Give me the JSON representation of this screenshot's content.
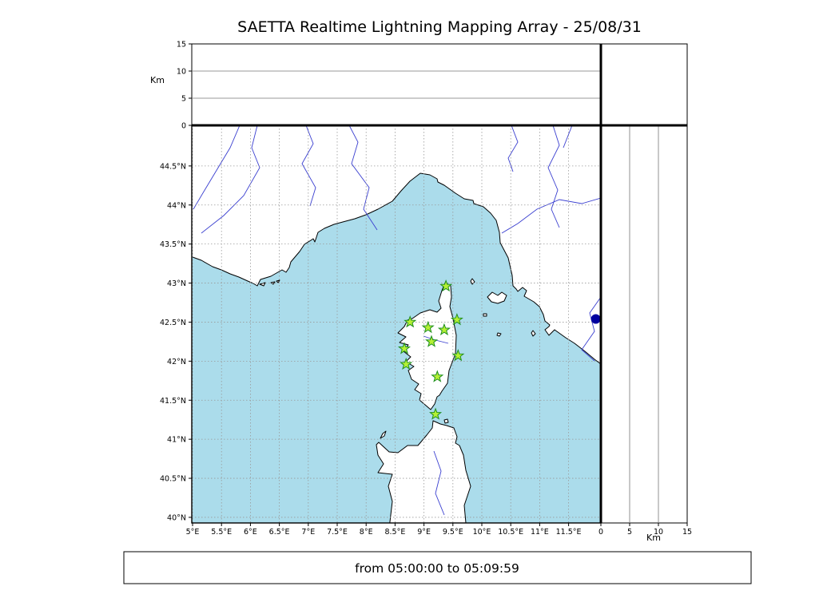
{
  "title": "SAETTA Realtime Lightning Mapping Array - 25/08/31",
  "status_bar": {
    "text": "from 05:00:00 to 05:09:59"
  },
  "chart_data": {
    "type": "scatter",
    "title": "SAETTA Realtime Lightning Mapping Array - 25/08/31",
    "time_range": "from 05:00:00 to 05:09:59",
    "map": {
      "lon_range": [
        4.986,
        12.058
      ],
      "lat_range": [
        39.928,
        45.02
      ],
      "lon_ticks": [
        {
          "value": 5.0,
          "label": "5°E"
        },
        {
          "value": 5.5,
          "label": "5.5°E"
        },
        {
          "value": 6.0,
          "label": "6°E"
        },
        {
          "value": 6.5,
          "label": "6.5°E"
        },
        {
          "value": 7.0,
          "label": "7°E"
        },
        {
          "value": 7.5,
          "label": "7.5°E"
        },
        {
          "value": 8.0,
          "label": "8°E"
        },
        {
          "value": 8.5,
          "label": "8.5°E"
        },
        {
          "value": 9.0,
          "label": "9°E"
        },
        {
          "value": 9.5,
          "label": "9.5°E"
        },
        {
          "value": 10.0,
          "label": "10°E"
        },
        {
          "value": 10.5,
          "label": "10.5°E"
        },
        {
          "value": 11.0,
          "label": "11°E"
        },
        {
          "value": 11.5,
          "label": "11.5°E"
        }
      ],
      "lat_ticks": [
        {
          "value": 40.0,
          "label": "40°N"
        },
        {
          "value": 40.5,
          "label": "40.5°N"
        },
        {
          "value": 41.0,
          "label": "41°N"
        },
        {
          "value": 41.5,
          "label": "41.5°N"
        },
        {
          "value": 42.0,
          "label": "42°N"
        },
        {
          "value": 42.5,
          "label": "42.5°N"
        },
        {
          "value": 43.0,
          "label": "43°N"
        },
        {
          "value": 43.5,
          "label": "43.5°N"
        },
        {
          "value": 44.0,
          "label": "44°N"
        },
        {
          "value": 44.5,
          "label": "44.5°N"
        }
      ],
      "sea_color": "#abdceb",
      "land_color": "#ffffff",
      "coast_color": "#000000",
      "river_color": "#3a3fd0",
      "grid_color": "#999999"
    },
    "altitude_axis": {
      "label": "Km",
      "range": [
        0,
        15
      ],
      "ticks": [
        {
          "value": 0,
          "label": "0"
        },
        {
          "value": 5,
          "label": "5"
        },
        {
          "value": 10,
          "label": "10"
        },
        {
          "value": 15,
          "label": "15"
        }
      ],
      "gridlines": [
        5,
        10
      ]
    },
    "stations": [
      {
        "lon": 9.38,
        "lat": 42.96
      },
      {
        "lon": 8.76,
        "lat": 42.5
      },
      {
        "lon": 9.57,
        "lat": 42.53
      },
      {
        "lon": 9.07,
        "lat": 42.43
      },
      {
        "lon": 9.35,
        "lat": 42.4
      },
      {
        "lon": 9.13,
        "lat": 42.25
      },
      {
        "lon": 8.66,
        "lat": 42.16
      },
      {
        "lon": 9.59,
        "lat": 42.07
      },
      {
        "lon": 8.69,
        "lat": 41.96
      },
      {
        "lon": 9.23,
        "lat": 41.8
      },
      {
        "lon": 9.2,
        "lat": 41.32
      }
    ],
    "station_style": {
      "fill": "#b5f035",
      "stroke": "#1f8f1f"
    },
    "extra_marker": {
      "lon": 11.97,
      "lat": 42.54,
      "color": "#0000a0",
      "shape": "circle"
    }
  }
}
